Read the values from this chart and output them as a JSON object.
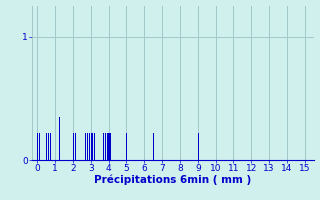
{
  "xlabel": "Précipitations 6min ( mm )",
  "xlim": [
    -0.3,
    15.5
  ],
  "ylim": [
    0,
    1.25
  ],
  "yticks": [
    0,
    1
  ],
  "xticks": [
    0,
    1,
    2,
    3,
    4,
    5,
    6,
    7,
    8,
    9,
    10,
    11,
    12,
    13,
    14,
    15
  ],
  "background_color": "#cff0ec",
  "bar_color": "#0000cc",
  "grid_color": "#a0c8c8",
  "bar_positions": [
    0.02,
    0.12,
    0.52,
    0.62,
    0.72,
    1.22,
    2.02,
    2.12,
    2.72,
    2.82,
    2.92,
    3.02,
    3.12,
    3.22,
    3.72,
    3.82,
    3.92,
    4.02,
    4.12,
    5.02,
    6.52,
    9.02
  ],
  "bar_heights": [
    0.22,
    0.22,
    0.22,
    0.22,
    0.22,
    0.35,
    0.22,
    0.22,
    0.22,
    0.22,
    0.22,
    0.22,
    0.22,
    0.22,
    0.22,
    0.22,
    0.22,
    0.22,
    0.22,
    0.22,
    0.22,
    0.22
  ],
  "bar_width": 0.06,
  "tick_color": "#0000cc",
  "label_color": "#0000cc",
  "tick_fontsize": 6.5,
  "label_fontsize": 7.5
}
